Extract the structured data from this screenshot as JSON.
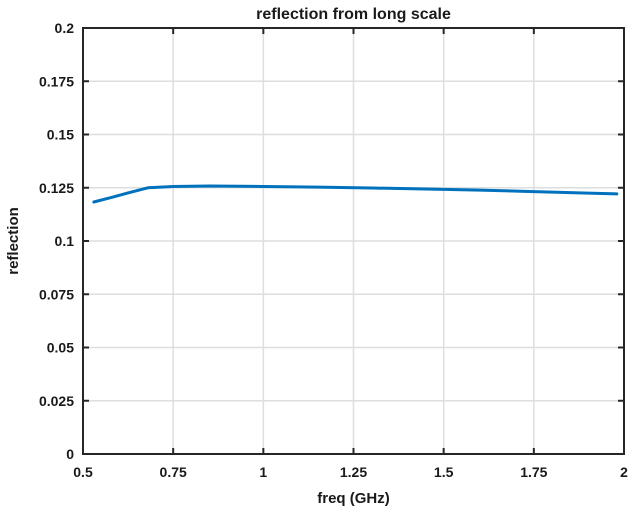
{
  "figure": {
    "background": "#ffffff"
  },
  "chart_data": {
    "type": "line",
    "title": "reflection from long scale",
    "xlabel": "freq (GHz)",
    "ylabel": "reflection",
    "xlim": [
      0.5,
      2
    ],
    "ylim": [
      0,
      0.2
    ],
    "x_ticks": [
      0.5,
      0.75,
      1,
      1.25,
      1.5,
      1.75,
      2
    ],
    "x_tick_labels": [
      "0.5",
      "0.75",
      "1",
      "1.25",
      "1.5",
      "1.75",
      "2"
    ],
    "y_ticks": [
      0,
      0.025,
      0.05,
      0.075,
      0.1,
      0.125,
      0.15,
      0.175,
      0.2
    ],
    "y_tick_labels": [
      "0",
      "0.025",
      "0.05",
      "0.075",
      "0.1",
      "0.125",
      "0.15",
      "0.175",
      "0.2"
    ],
    "grid": true,
    "legend": "none",
    "series": [
      {
        "name": "reflection",
        "color": "#0072bd",
        "line_width": 3,
        "x": [
          0.53,
          0.58,
          0.63,
          0.68,
          0.75,
          0.85,
          1.0,
          1.15,
          1.3,
          1.45,
          1.6,
          1.75,
          1.9,
          1.98
        ],
        "y": [
          0.1183,
          0.1205,
          0.1228,
          0.125,
          0.1256,
          0.1258,
          0.1256,
          0.1253,
          0.1249,
          0.1244,
          0.1239,
          0.1232,
          0.1225,
          0.1221
        ]
      }
    ]
  },
  "colors": {
    "line": "#0072bd",
    "grid": "#dedede",
    "axis": "#262626",
    "text": "#1a1a1a",
    "background": "#ffffff"
  }
}
